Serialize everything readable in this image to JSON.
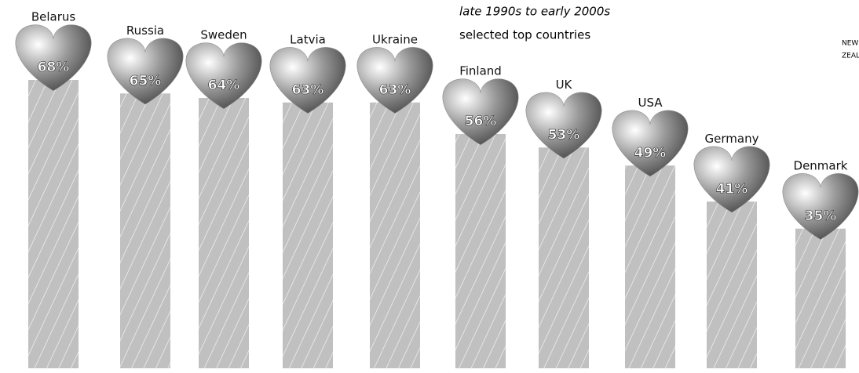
{
  "chart_data": {
    "type": "bar",
    "subtitle": "late 1990s to early 2000s",
    "note": "selected top countries",
    "map_labels": [
      "NEW",
      "ZEALAND"
    ],
    "categories": [
      "Belarus",
      "Russia",
      "Sweden",
      "Latvia",
      "Ukraine",
      "Finland",
      "UK",
      "USA",
      "Germany",
      "Denmark"
    ],
    "values": [
      68,
      65,
      64,
      63,
      63,
      56,
      53,
      49,
      41,
      35
    ],
    "value_labels": [
      "68%",
      "65%",
      "64%",
      "63%",
      "63%",
      "56%",
      "53%",
      "49%",
      "41%",
      "35%"
    ],
    "color": "#8a8a8a"
  }
}
